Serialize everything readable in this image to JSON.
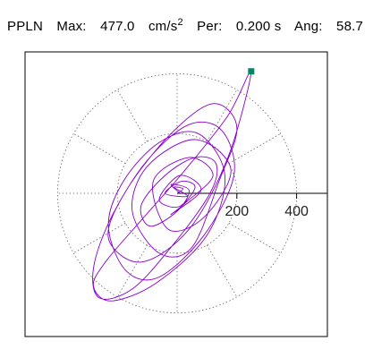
{
  "header": {
    "station": "PPLN",
    "max_label": "Max:",
    "max_value": "477.0",
    "max_unit": "cm/s",
    "max_unit_power": "2",
    "per_label": "Per:",
    "per_value": "0.200 s",
    "ang_label": "Ang:",
    "ang_value": "58.7"
  },
  "chart_data": {
    "type": "line",
    "title": "",
    "xlabel": "",
    "ylabel": "",
    "projection": "polar",
    "radial_ticks": [
      200,
      400
    ],
    "radial_grid_levels": [
      200,
      400
    ],
    "angular_grid_step_deg": 30,
    "grid": "dotted",
    "max_marker": {
      "x": 248,
      "y": 408,
      "color": "#008866"
    },
    "series": [
      {
        "color": "#8800cc",
        "x": [
          0,
          20,
          -10,
          35,
          -40,
          15,
          60,
          5,
          -60,
          10,
          80,
          -20,
          30,
          120,
          40,
          -80,
          -30,
          90,
          180,
          60,
          -100,
          -150,
          -60,
          50,
          140,
          200,
          120,
          -20,
          -170,
          -230,
          -120,
          40,
          170,
          248,
          170,
          20,
          -120,
          -240,
          -280,
          -220,
          -70,
          100,
          160,
          70,
          -60,
          -180,
          -230,
          -170,
          -60,
          90,
          190,
          150,
          40,
          -100,
          -220,
          -280,
          -260,
          -150,
          -20,
          110,
          130,
          60,
          -40,
          -120,
          -90,
          0,
          40,
          -20,
          10
        ],
        "y": [
          0,
          15,
          20,
          -10,
          0,
          40,
          20,
          -45,
          -20,
          60,
          10,
          -70,
          -30,
          60,
          120,
          40,
          -120,
          -80,
          80,
          180,
          90,
          -60,
          -200,
          -180,
          40,
          220,
          300,
          200,
          10,
          -150,
          -230,
          -120,
          120,
          408,
          260,
          70,
          -90,
          -230,
          -310,
          -360,
          -300,
          -140,
          60,
          200,
          170,
          40,
          -110,
          -260,
          -280,
          -140,
          60,
          210,
          230,
          110,
          -80,
          -250,
          -350,
          -320,
          -180,
          0,
          100,
          120,
          60,
          -40,
          -110,
          -60,
          10,
          30,
          0
        ]
      }
    ]
  }
}
